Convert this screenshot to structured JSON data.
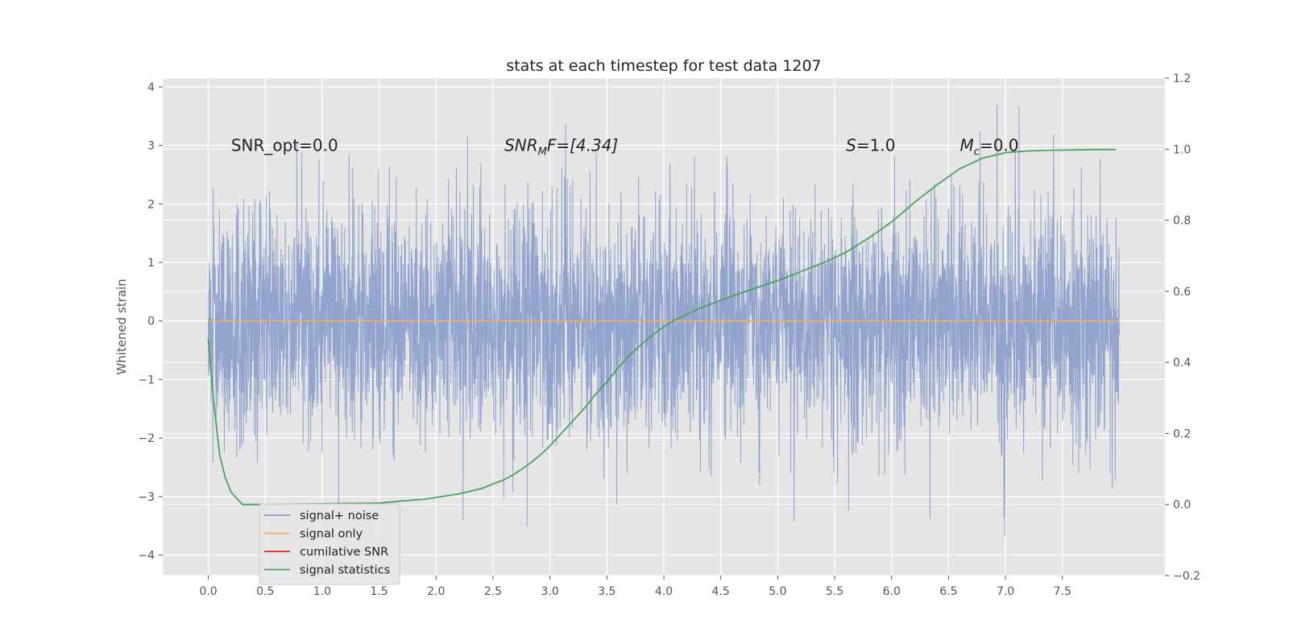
{
  "chart_data": {
    "type": "line",
    "title": "stats at each timestep for test data 1207",
    "ylabel": "Whitened strain",
    "xlim": [
      -0.4,
      8.4
    ],
    "ylim": [
      -4.35,
      4.15
    ],
    "y2lim": [
      -0.2,
      1.2
    ],
    "xticks": [
      "0.0",
      "0.5",
      "1.0",
      "1.5",
      "2.0",
      "2.5",
      "3.0",
      "3.5",
      "4.0",
      "4.5",
      "5.0",
      "5.5",
      "6.0",
      "6.5",
      "7.0",
      "7.5"
    ],
    "yticks": [
      "4",
      "3",
      "2",
      "1",
      "0",
      "−1",
      "−2",
      "−3",
      "−4"
    ],
    "y2ticks": [
      "1.2",
      "1.0",
      "0.8",
      "0.6",
      "0.4",
      "0.2",
      "0.0",
      "−0.2"
    ],
    "grid": true,
    "legend_position": "lower-left",
    "annotations": [
      {
        "text": "SNR_opt=0.0",
        "x": 0.2,
        "y": 3.0
      },
      {
        "text": "SNR",
        "sub": "M",
        "tail": "F=[4.34]",
        "italic": true,
        "x": 2.6,
        "y": 3.0
      },
      {
        "text": "S",
        "tail": "=1.0",
        "italic": true,
        "x": 5.6,
        "y": 3.0
      },
      {
        "text": "M",
        "sub": "c",
        "tail": "=0.0",
        "italic": true,
        "x": 6.6,
        "y": 3.0
      }
    ],
    "series": [
      {
        "name": "signal+ noise",
        "color": "#8da0cb",
        "axis": "left",
        "kind": "noise",
        "x_start": 0.0,
        "x_end": 8.0,
        "std": 1.0
      },
      {
        "name": "signal only",
        "color": "#f2b452",
        "axis": "left",
        "x": [
          0.0,
          8.0
        ],
        "y": [
          0.0,
          0.0
        ]
      },
      {
        "name": "cumilative SNR",
        "color": "#e2231a",
        "axis": "left",
        "x": [],
        "y": []
      },
      {
        "name": "signal statistics",
        "color": "#4aa35a",
        "axis": "right",
        "x": [
          0.0,
          0.05,
          0.1,
          0.15,
          0.2,
          0.3,
          0.5,
          1.0,
          1.5,
          1.7,
          1.9,
          2.0,
          2.2,
          2.4,
          2.5,
          2.6,
          2.7,
          2.8,
          2.9,
          3.0,
          3.1,
          3.2,
          3.3,
          3.4,
          3.5,
          3.6,
          3.7,
          3.8,
          3.9,
          4.0,
          4.1,
          4.3,
          4.5,
          4.7,
          5.0,
          5.2,
          5.4,
          5.6,
          5.8,
          6.0,
          6.2,
          6.4,
          6.6,
          6.8,
          7.0,
          7.2,
          7.4,
          7.6,
          7.8,
          7.97
        ],
        "y": [
          0.465,
          0.28,
          0.14,
          0.075,
          0.035,
          0.0,
          0.0,
          0.002,
          0.004,
          0.01,
          0.015,
          0.02,
          0.03,
          0.045,
          0.058,
          0.07,
          0.088,
          0.11,
          0.135,
          0.165,
          0.2,
          0.235,
          0.27,
          0.31,
          0.345,
          0.385,
          0.42,
          0.45,
          0.477,
          0.5,
          0.52,
          0.55,
          0.575,
          0.598,
          0.63,
          0.655,
          0.68,
          0.71,
          0.75,
          0.795,
          0.85,
          0.9,
          0.945,
          0.975,
          0.99,
          0.995,
          0.997,
          0.998,
          0.999,
          0.999
        ]
      }
    ]
  }
}
